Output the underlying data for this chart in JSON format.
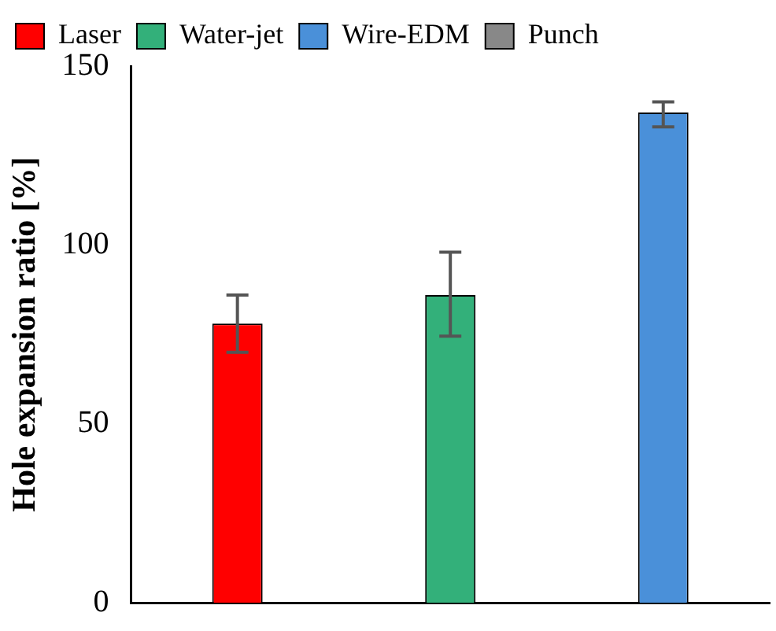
{
  "chart_data": {
    "type": "bar",
    "ylabel": "Hole expansion ratio [%]",
    "categories": [
      null,
      null,
      null
    ],
    "series": [
      {
        "name": "Laser",
        "color": "#ff0000",
        "values": [
          78,
          null,
          null
        ],
        "errors": [
          [
            70,
            86
          ],
          null,
          null
        ]
      },
      {
        "name": "Water-jet",
        "color": "#33b07a",
        "values": [
          null,
          86,
          null
        ],
        "errors": [
          null,
          [
            74.5,
            98
          ],
          null
        ]
      },
      {
        "name": "Wire-EDM",
        "color": "#4a90d9",
        "values": [
          null,
          null,
          137
        ],
        "errors": [
          null,
          null,
          [
            133,
            140
          ]
        ]
      },
      {
        "name": "Punch",
        "color": "#888888",
        "values": [
          null,
          null,
          null
        ]
      }
    ],
    "ylim": [
      0,
      150
    ],
    "yticks": [
      0,
      50,
      100,
      150
    ],
    "grid": false,
    "legend": "top left"
  }
}
